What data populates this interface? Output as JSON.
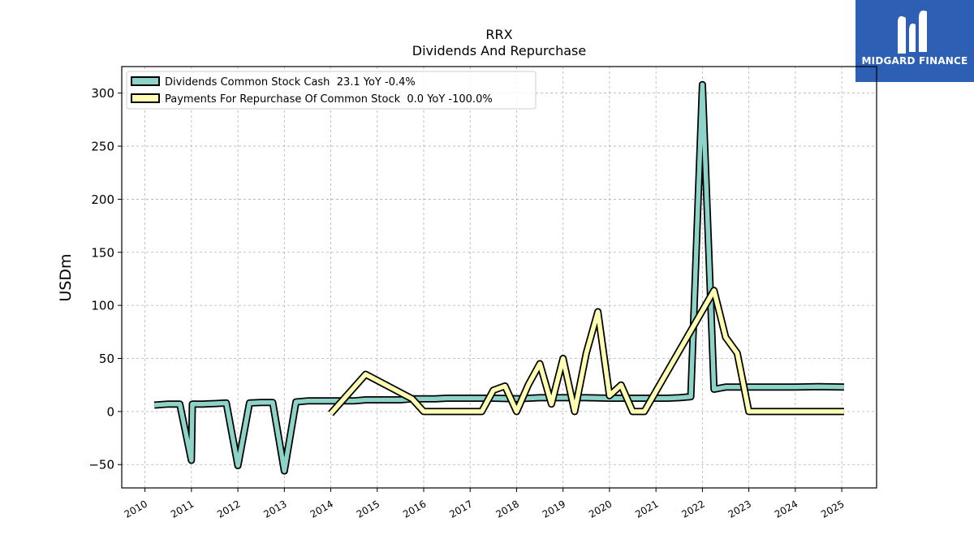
{
  "logo": {
    "text": "MIDGARD FINANCE",
    "icon": "midgard-logo-icon",
    "color": "#2d5fb4"
  },
  "chart_data": {
    "type": "line",
    "title": "RRX",
    "subtitle": "Dividends And Repurchase",
    "xlabel": "",
    "ylabel": "USDm",
    "xlim": [
      2009.5,
      2025.75
    ],
    "ylim": [
      -72,
      325
    ],
    "x_ticks": [
      2010,
      2011,
      2012,
      2013,
      2014,
      2015,
      2016,
      2017,
      2018,
      2019,
      2020,
      2021,
      2022,
      2023,
      2024,
      2025
    ],
    "y_ticks": [
      -50,
      0,
      50,
      100,
      150,
      200,
      250,
      300
    ],
    "grid": true,
    "legend_position": "top-left",
    "series": [
      {
        "name": "Dividends Common Stock Cash  23.1 YoY -0.4%",
        "color": "#8dd3c7",
        "points": [
          [
            2010.2,
            6
          ],
          [
            2010.5,
            7
          ],
          [
            2010.75,
            7
          ],
          [
            2011.0,
            -46
          ],
          [
            2011.02,
            7
          ],
          [
            2011.25,
            7
          ],
          [
            2011.5,
            7.5
          ],
          [
            2011.75,
            8
          ],
          [
            2012.0,
            -51
          ],
          [
            2012.25,
            8
          ],
          [
            2012.5,
            8.5
          ],
          [
            2012.75,
            8.5
          ],
          [
            2013.0,
            -56
          ],
          [
            2013.25,
            9
          ],
          [
            2013.5,
            10
          ],
          [
            2013.75,
            10
          ],
          [
            2014.0,
            10
          ],
          [
            2014.5,
            10
          ],
          [
            2014.75,
            11
          ],
          [
            2015.0,
            11
          ],
          [
            2015.5,
            11
          ],
          [
            2015.75,
            12
          ],
          [
            2016.0,
            12
          ],
          [
            2016.25,
            12
          ],
          [
            2016.5,
            12.5
          ],
          [
            2017.0,
            12.5
          ],
          [
            2017.5,
            12.5
          ],
          [
            2018.0,
            12
          ],
          [
            2018.5,
            13
          ],
          [
            2019.0,
            13
          ],
          [
            2019.5,
            13
          ],
          [
            2020.0,
            12.5
          ],
          [
            2020.5,
            12.5
          ],
          [
            2021.0,
            12.5
          ],
          [
            2021.25,
            12.5
          ],
          [
            2021.5,
            13
          ],
          [
            2021.75,
            14
          ],
          [
            2022.0,
            308
          ],
          [
            2022.25,
            21
          ],
          [
            2022.5,
            23
          ],
          [
            2023.0,
            23
          ],
          [
            2023.5,
            23
          ],
          [
            2024.0,
            23
          ],
          [
            2024.5,
            23.5
          ],
          [
            2025.05,
            23.1
          ]
        ]
      },
      {
        "name": "Payments For Repurchase Of Common Stock  0.0 YoY -100.0%",
        "color": "#ffffb3",
        "points": [
          [
            2014.0,
            -2
          ],
          [
            2014.75,
            35
          ],
          [
            2015.75,
            12
          ],
          [
            2016.0,
            0
          ],
          [
            2017.25,
            0
          ],
          [
            2017.5,
            20
          ],
          [
            2017.75,
            24
          ],
          [
            2018.0,
            0
          ],
          [
            2018.25,
            25
          ],
          [
            2018.5,
            45
          ],
          [
            2018.75,
            7
          ],
          [
            2019.0,
            50
          ],
          [
            2019.25,
            0
          ],
          [
            2019.5,
            55
          ],
          [
            2019.75,
            94
          ],
          [
            2020.0,
            15
          ],
          [
            2020.25,
            25
          ],
          [
            2020.5,
            0
          ],
          [
            2020.75,
            0
          ],
          [
            2022.25,
            114
          ],
          [
            2022.5,
            70
          ],
          [
            2022.75,
            55
          ],
          [
            2023.0,
            0
          ],
          [
            2025.05,
            0
          ]
        ]
      }
    ]
  }
}
